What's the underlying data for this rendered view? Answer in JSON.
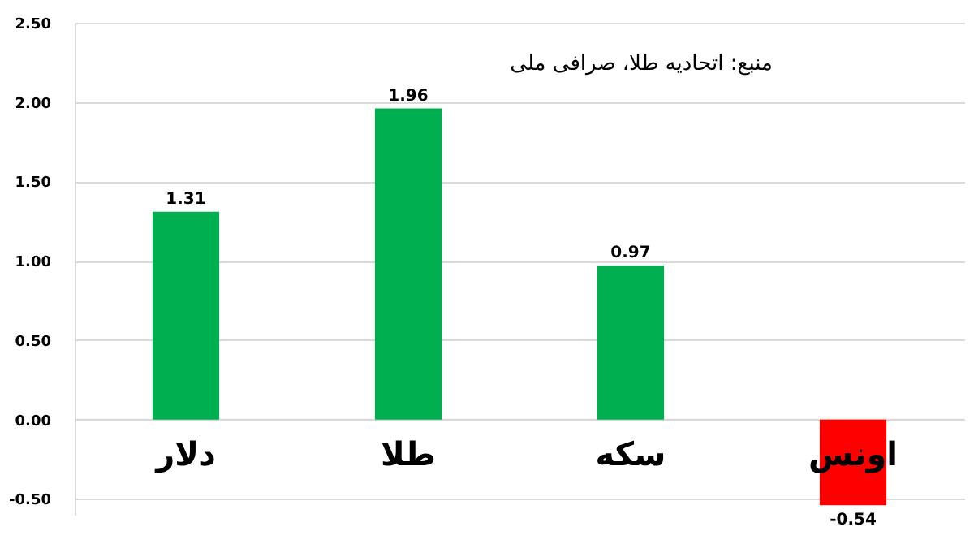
{
  "chart_data": {
    "type": "bar",
    "categories": [
      "دلار",
      "طلا",
      "سکه",
      "اونس"
    ],
    "values": [
      1.31,
      1.96,
      0.97,
      -0.54
    ],
    "colors": [
      "#00b050",
      "#00b050",
      "#00b050",
      "#ff0000"
    ],
    "data_labels": true,
    "ylim": [
      -0.6,
      2.5
    ],
    "yticks": [
      {
        "value": -0.5,
        "label": "-0.50"
      },
      {
        "value": 0,
        "label": "0.00"
      },
      {
        "value": 0.5,
        "label": "0.50"
      },
      {
        "value": 1,
        "label": "1.00"
      },
      {
        "value": 1.5,
        "label": "1.50"
      },
      {
        "value": 2,
        "label": "2.00"
      },
      {
        "value": 2.5,
        "label": "2.50"
      }
    ],
    "grid": "y",
    "annotations": [
      "منبع: اتحادیه طلا، صرافی ملی"
    ]
  }
}
